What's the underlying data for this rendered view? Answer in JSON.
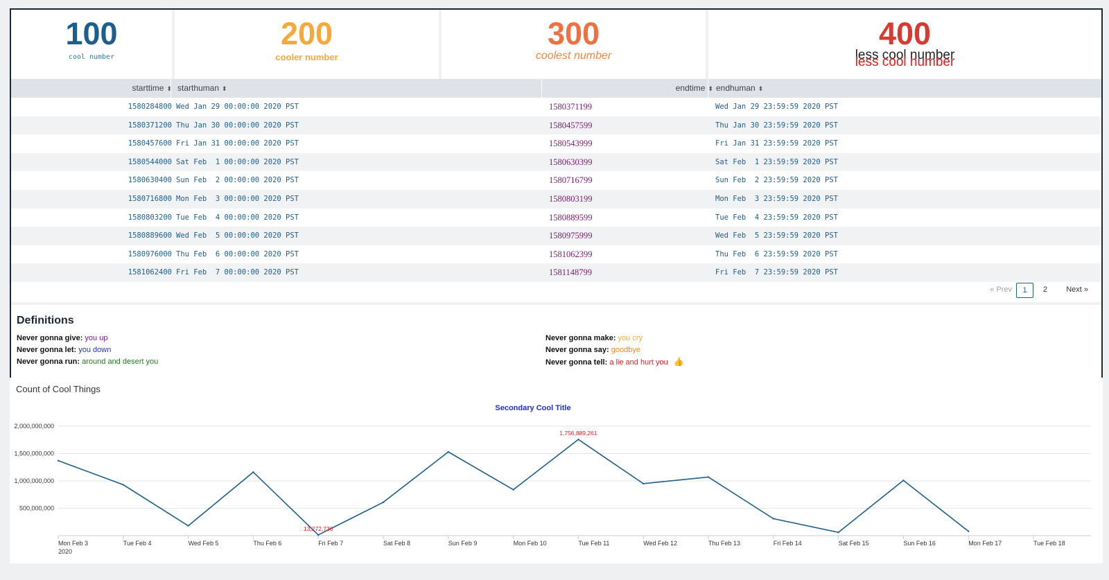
{
  "single_values": [
    {
      "value": "100",
      "label": "cool number",
      "color": "#1c5f8c"
    },
    {
      "value": "200",
      "label": "cooler number",
      "color": "#f6a83b"
    },
    {
      "value": "300",
      "label": "coolest number",
      "color": "#ef7040"
    },
    {
      "value": "400",
      "label": "less cool number",
      "label_overlay": "less cool number",
      "color": "#d63a30"
    }
  ],
  "table": {
    "columns": [
      "starttime",
      "starthuman",
      "endtime",
      "endhuman"
    ],
    "rows": [
      [
        "1580284800",
        "Wed Jan 29 00:00:00 2020 PST",
        "1580371199",
        "Wed Jan 29 23:59:59 2020 PST"
      ],
      [
        "1580371200",
        "Thu Jan 30 00:00:00 2020 PST",
        "1580457599",
        "Thu Jan 30 23:59:59 2020 PST"
      ],
      [
        "1580457600",
        "Fri Jan 31 00:00:00 2020 PST",
        "1580543999",
        "Fri Jan 31 23:59:59 2020 PST"
      ],
      [
        "1580544000",
        "Sat Feb  1 00:00:00 2020 PST",
        "1580630399",
        "Sat Feb  1 23:59:59 2020 PST"
      ],
      [
        "1580630400",
        "Sun Feb  2 00:00:00 2020 PST",
        "1580716799",
        "Sun Feb  2 23:59:59 2020 PST"
      ],
      [
        "1580716800",
        "Mon Feb  3 00:00:00 2020 PST",
        "1580803199",
        "Mon Feb  3 23:59:59 2020 PST"
      ],
      [
        "1580803200",
        "Tue Feb  4 00:00:00 2020 PST",
        "1580889599",
        "Tue Feb  4 23:59:59 2020 PST"
      ],
      [
        "1580889600",
        "Wed Feb  5 00:00:00 2020 PST",
        "1580975999",
        "Wed Feb  5 23:59:59 2020 PST"
      ],
      [
        "1580976000",
        "Thu Feb  6 00:00:00 2020 PST",
        "1581062399",
        "Thu Feb  6 23:59:59 2020 PST"
      ],
      [
        "1581062400",
        "Fri Feb  7 00:00:00 2020 PST",
        "1581148799",
        "Fri Feb  7 23:59:59 2020 PST"
      ]
    ]
  },
  "paging": {
    "prev": "« Prev",
    "pages": [
      "1",
      "2"
    ],
    "current": "1",
    "next": "Next »"
  },
  "definitions": {
    "title": "Definitions",
    "left": [
      {
        "key": "Never gonna give:",
        "value": "you up",
        "color": "#7b1b9c"
      },
      {
        "key": "Never gonna let:",
        "value": "you down",
        "color": "#1b2fd6"
      },
      {
        "key": "Never gonna run:",
        "value": "around and desert you",
        "color": "#1e7b1e"
      }
    ],
    "right": [
      {
        "key": "Never gonna make:",
        "value": "you cry",
        "color": "#f6a83b"
      },
      {
        "key": "Never gonna say:",
        "value": "goodbye",
        "color": "#f08a1c"
      },
      {
        "key": "Never gonna tell:",
        "value": "a lie and hurt you",
        "color": "#e8191c",
        "icon": "thumbs-up-icon"
      }
    ]
  },
  "chart_panel_title": "Count of Cool Things",
  "chart_data": {
    "type": "line",
    "title": "Secondary Cool Title",
    "title_color": "#1b2fd6",
    "line_color": "#1c5f8c",
    "annotation_color": "#e8191c",
    "x": [
      "Mon Feb 3",
      "Tue Feb 4",
      "Wed Feb 5",
      "Thu Feb 6",
      "Fri Feb 7",
      "Sat Feb 8",
      "Sun Feb 9",
      "Mon Feb 10",
      "Tue Feb 11",
      "Wed Feb 12",
      "Thu Feb 13",
      "Fri Feb 14",
      "Sat Feb 15",
      "Sun Feb 16",
      "Mon Feb 17"
    ],
    "x_ticks": [
      "Mon Feb 3",
      "Tue Feb 4",
      "Wed Feb 5",
      "Thu Feb 6",
      "Fri Feb 7",
      "Sat Feb 8",
      "Sun Feb 9",
      "Mon Feb 10",
      "Tue Feb 11",
      "Wed Feb 12",
      "Thu Feb 13",
      "Fri Feb 14",
      "Sat Feb 15",
      "Sun Feb 16",
      "Mon Feb 17",
      "Tue Feb 18"
    ],
    "x_year_label": "2020",
    "values": [
      1370000000,
      930000000,
      180000000,
      1160000000,
      13272736,
      610000000,
      1530000000,
      840000000,
      1756889261,
      950000000,
      1070000000,
      310000000,
      60000000,
      1010000000,
      80000000
    ],
    "y_ticks": [
      "2,000,000,000",
      "1,500,000,000",
      "1,000,000,000",
      "500,000,000"
    ],
    "ylim": [
      0,
      2000000000
    ],
    "annotations": [
      {
        "index": 8,
        "label": "1,756,889,261"
      },
      {
        "index": 4,
        "label": "13,272,736"
      }
    ],
    "grid": true
  }
}
